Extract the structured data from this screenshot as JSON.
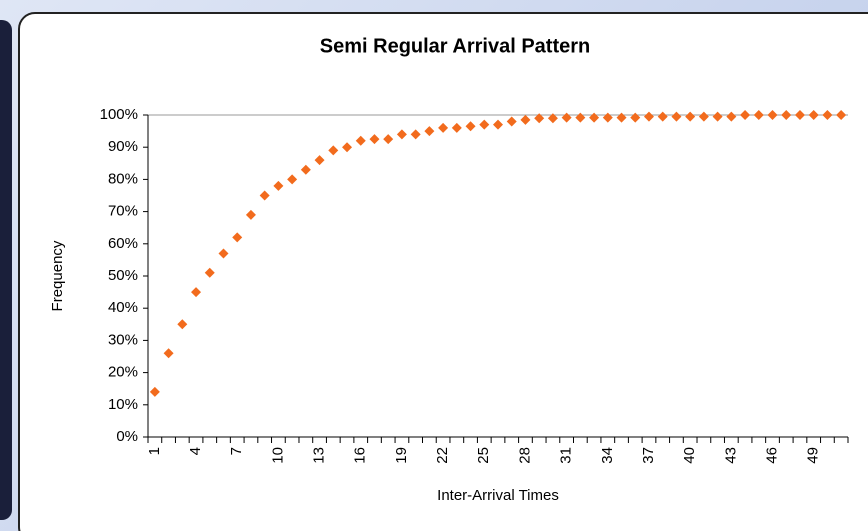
{
  "chart_data": {
    "type": "scatter",
    "title": "Semi Regular Arrival Pattern",
    "x_label": "Inter-Arrival Times",
    "y_label": "Frequency",
    "categories": [
      "1",
      null,
      null,
      "4",
      null,
      null,
      "7",
      null,
      null,
      "10",
      null,
      null,
      "13",
      null,
      null,
      "16",
      null,
      null,
      "19",
      null,
      null,
      "22",
      null,
      null,
      "25",
      null,
      null,
      "28",
      null,
      null,
      "31",
      null,
      null,
      "34",
      null,
      null,
      "37",
      null,
      null,
      "40",
      null,
      null,
      "43",
      null,
      null,
      "46",
      null,
      null,
      "49",
      null,
      null
    ],
    "values": [
      14,
      26,
      35,
      45,
      51,
      57,
      62,
      69,
      75,
      78,
      80,
      83,
      86,
      89,
      90,
      92,
      92.5,
      92.5,
      94,
      94,
      95,
      96,
      96,
      96.5,
      97,
      97,
      98,
      98.5,
      99,
      99,
      99.2,
      99.2,
      99.2,
      99.2,
      99.2,
      99.2,
      99.5,
      99.5,
      99.5,
      99.5,
      99.5,
      99.5,
      99.5,
      100,
      100,
      100,
      100,
      100,
      100,
      100,
      100
    ],
    "color": "#f26b1d",
    "ylim": [
      0,
      100
    ],
    "yticks": [
      {
        "value": 0,
        "label": "0%"
      },
      {
        "value": 10,
        "label": "10%"
      },
      {
        "value": 20,
        "label": "20%"
      },
      {
        "value": 30,
        "label": "30%"
      },
      {
        "value": 40,
        "label": "40%"
      },
      {
        "value": 50,
        "label": "50%"
      },
      {
        "value": 60,
        "label": "60%"
      },
      {
        "value": 70,
        "label": "70%"
      },
      {
        "value": 80,
        "label": "80%"
      },
      {
        "value": 90,
        "label": "90%"
      },
      {
        "value": 100,
        "label": "100%"
      }
    ],
    "grid": false
  }
}
